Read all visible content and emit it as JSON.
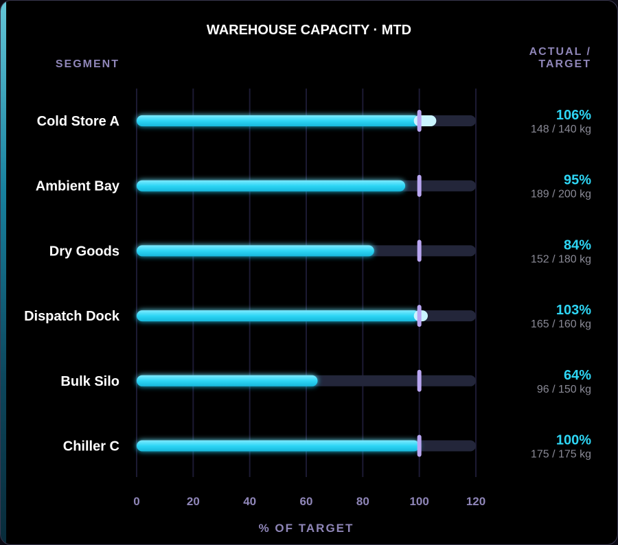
{
  "colors": {
    "bar": "#2ed6f5",
    "bar_over": "#c9f4ff",
    "track": "#23263a",
    "target_marker": "#b9a6f2",
    "grid": "#1c1a33",
    "percent_text": "#2ed6f5"
  },
  "chart_data": {
    "type": "bar",
    "orientation": "horizontal",
    "title": "WAREHOUSE CAPACITY · MTD",
    "segment_header": "SEGMENT",
    "value_header_line1": "ACTUAL /",
    "value_header_line2": "TARGET",
    "xlabel": "% OF TARGET",
    "xlim": [
      0,
      120
    ],
    "xticks": [
      0,
      20,
      40,
      60,
      80,
      100,
      120
    ],
    "target_line": 100,
    "grid": true,
    "unit": "kg",
    "rows": [
      {
        "name": "Cold Store A",
        "percent": 106,
        "percent_label": "106%",
        "actual": 148,
        "target": 140,
        "detail": "148 / 140 kg"
      },
      {
        "name": "Ambient Bay",
        "percent": 95,
        "percent_label": "95%",
        "actual": 189,
        "target": 200,
        "detail": "189 / 200 kg"
      },
      {
        "name": "Dry Goods",
        "percent": 84,
        "percent_label": "84%",
        "actual": 152,
        "target": 180,
        "detail": "152 / 180 kg"
      },
      {
        "name": "Dispatch Dock",
        "percent": 103,
        "percent_label": "103%",
        "actual": 165,
        "target": 160,
        "detail": "165 / 160 kg"
      },
      {
        "name": "Bulk Silo",
        "percent": 64,
        "percent_label": "64%",
        "actual": 96,
        "target": 150,
        "detail": "96 / 150 kg"
      },
      {
        "name": "Chiller C",
        "percent": 100,
        "percent_label": "100%",
        "actual": 175,
        "target": 175,
        "detail": "175 / 175 kg"
      }
    ]
  }
}
